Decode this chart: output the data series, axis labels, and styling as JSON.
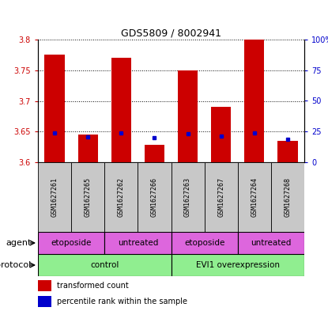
{
  "title": "GDS5809 / 8002941",
  "samples": [
    "GSM1627261",
    "GSM1627265",
    "GSM1627262",
    "GSM1627266",
    "GSM1627263",
    "GSM1627267",
    "GSM1627264",
    "GSM1627268"
  ],
  "red_values": [
    3.775,
    3.645,
    3.77,
    3.628,
    3.75,
    3.69,
    3.8,
    3.635
  ],
  "blue_values": [
    3.648,
    3.641,
    3.648,
    3.64,
    3.646,
    3.643,
    3.648,
    3.638
  ],
  "ylim": [
    3.6,
    3.8
  ],
  "yticks_left": [
    3.6,
    3.65,
    3.7,
    3.75,
    3.8
  ],
  "yticks_right": [
    0,
    25,
    50,
    75,
    100
  ],
  "right_labels": [
    "0",
    "25",
    "50",
    "75",
    "100%"
  ],
  "bar_color": "#CC0000",
  "blue_color": "#0000CC",
  "plot_bg": "#FFFFFF",
  "label_color_left": "#CC0000",
  "label_color_right": "#0000CC",
  "protocol_label": "protocol",
  "agent_label": "agent",
  "sample_bg": "#C8C8C8",
  "control_color": "#90EE90",
  "agent_color": "#DD66DD",
  "title_fontsize": 9,
  "tick_fontsize": 7,
  "label_fontsize": 7.5,
  "row_label_fontsize": 8
}
